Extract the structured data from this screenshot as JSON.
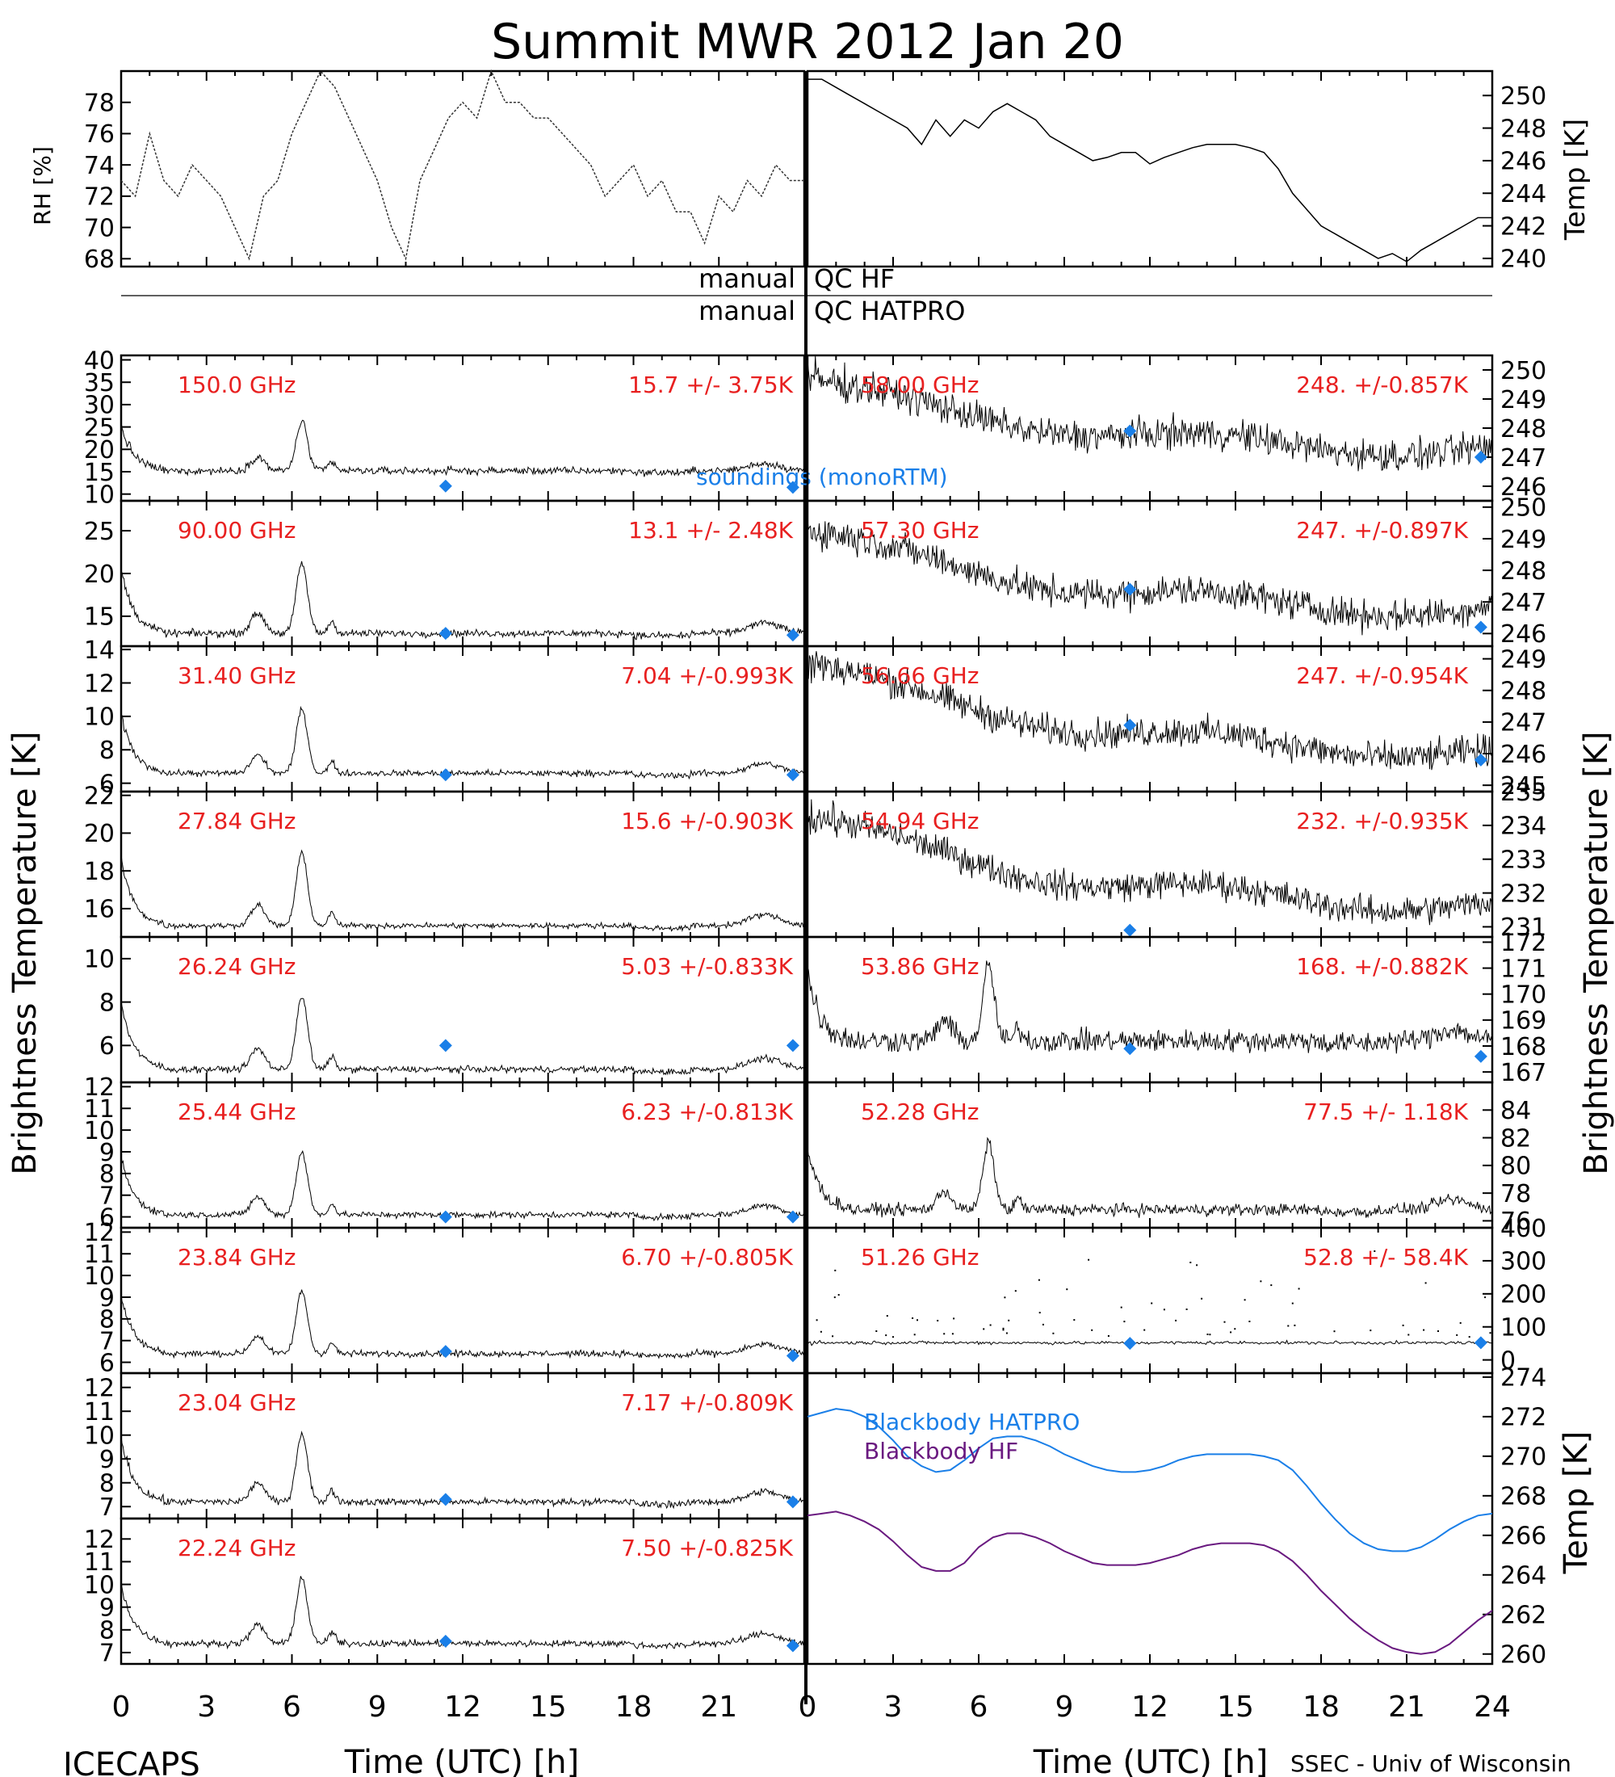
{
  "chart_data": {
    "type": "line",
    "title": "Summit MWR 2012 Jan 20",
    "footer_left": "ICECAPS",
    "footer_right": "SSEC - Univ of Wisconsin",
    "xlabel": "Time (UTC) [h]",
    "left_xticks": [
      0,
      3,
      6,
      9,
      12,
      15,
      18,
      21
    ],
    "right_xticks": [
      0,
      3,
      6,
      9,
      12,
      15,
      18,
      21,
      24
    ],
    "ylabel_left": "Brightness Temperature [K]",
    "ylabel_right": "Brightness Temperature [K]",
    "sonde_label": "soundings (monoRTM)",
    "qc": {
      "line1_left": "manual",
      "line1_right": "QC HF",
      "line2_left": "manual",
      "line2_right": "QC HATPRO"
    },
    "met": {
      "rh": {
        "ylabel": "RH [%]",
        "ylim": [
          67.5,
          80
        ],
        "yticks": [
          68,
          70,
          72,
          74,
          76,
          78
        ],
        "x": [
          0,
          0.5,
          1,
          1.5,
          2,
          2.5,
          3,
          3.5,
          4,
          4.5,
          5,
          5.5,
          6,
          6.5,
          7,
          7.5,
          8,
          8.5,
          9,
          9.5,
          10,
          10.5,
          11,
          11.5,
          12,
          12.5,
          13,
          13.5,
          14,
          14.5,
          15,
          15.5,
          16,
          16.5,
          17,
          17.5,
          18,
          18.5,
          19,
          19.5,
          20,
          20.5,
          21,
          21.5,
          22,
          22.5,
          23,
          23.5,
          24
        ],
        "y": [
          73,
          72,
          76,
          73,
          72,
          74,
          73,
          72,
          70,
          68,
          72,
          73,
          76,
          78,
          80,
          79,
          77,
          75,
          73,
          70,
          68,
          73,
          75,
          77,
          78,
          77,
          80,
          78,
          78,
          77,
          77,
          76,
          75,
          74,
          72,
          73,
          74,
          72,
          73,
          71,
          71,
          69,
          72,
          71,
          73,
          72,
          74,
          73,
          73
        ]
      },
      "temp": {
        "ylabel": "Temp [K]",
        "ylim": [
          239.5,
          251.5
        ],
        "yticks": [
          240,
          242,
          244,
          246,
          248,
          250
        ],
        "x": [
          0,
          0.5,
          1,
          1.5,
          2,
          2.5,
          3,
          3.5,
          4,
          4.5,
          5,
          5.5,
          6,
          6.5,
          7,
          7.5,
          8,
          8.5,
          9,
          9.5,
          10,
          10.5,
          11,
          11.5,
          12,
          12.5,
          13,
          13.5,
          14,
          14.5,
          15,
          15.5,
          16,
          16.5,
          17,
          17.5,
          18,
          18.5,
          19,
          19.5,
          20,
          20.5,
          21,
          21.5,
          22,
          22.5,
          23,
          23.5,
          24
        ],
        "y": [
          251,
          251,
          250.5,
          250,
          249.5,
          249,
          248.5,
          248,
          247,
          248.5,
          247.5,
          248.5,
          248,
          249,
          249.5,
          249,
          248.5,
          247.5,
          247,
          246.5,
          246,
          246.2,
          246.5,
          246.5,
          245.8,
          246.2,
          246.5,
          246.8,
          247,
          247,
          247,
          246.8,
          246.5,
          245.5,
          244,
          243,
          242,
          241.5,
          241,
          240.5,
          240,
          240.3,
          239.8,
          240.5,
          241,
          241.5,
          242,
          242.5,
          242.5
        ]
      }
    },
    "channels_left": [
      {
        "freq": "150.0 GHz",
        "stat": "15.7 +/-  3.75K",
        "ylim": [
          8.5,
          41
        ],
        "yticks": [
          10,
          15,
          20,
          25,
          30,
          35,
          40
        ],
        "base": 15.2,
        "amp": 1.15,
        "noise": 0.7,
        "sonde": [
          [
            11.4,
            11.8
          ],
          [
            23.6,
            11.5
          ]
        ]
      },
      {
        "freq": "90.00 GHz",
        "stat": "13.1 +/-  2.48K",
        "ylim": [
          11.5,
          28.5
        ],
        "yticks": [
          15,
          20,
          25
        ],
        "base": 13,
        "amp": 0.85,
        "noise": 0.35,
        "sonde": [
          [
            11.4,
            13
          ],
          [
            23.6,
            12.8
          ]
        ]
      },
      {
        "freq": "31.40 GHz",
        "stat": "7.04 +/-0.993K",
        "ylim": [
          5.5,
          14.2
        ],
        "yticks": [
          6,
          8,
          10,
          12,
          14
        ],
        "base": 6.6,
        "amp": 0.4,
        "noise": 0.15,
        "sonde": [
          [
            11.4,
            6.5
          ],
          [
            23.6,
            6.5
          ]
        ]
      },
      {
        "freq": "27.84 GHz",
        "stat": "15.6 +/-0.903K",
        "ylim": [
          14.5,
          22.2
        ],
        "yticks": [
          16,
          18,
          20,
          22
        ],
        "base": 15.1,
        "amp": 0.4,
        "noise": 0.12,
        "sonde": []
      },
      {
        "freq": "26.24 GHz",
        "stat": "5.03 +/-0.833K",
        "ylim": [
          4.3,
          11
        ],
        "yticks": [
          6,
          8,
          10
        ],
        "base": 4.9,
        "amp": 0.35,
        "noise": 0.12,
        "sonde": [
          [
            11.4,
            6
          ],
          [
            23.6,
            6
          ]
        ]
      },
      {
        "freq": "25.44 GHz",
        "stat": "6.23 +/-0.813K",
        "ylim": [
          5.5,
          12.2
        ],
        "yticks": [
          6,
          7,
          8,
          9,
          10,
          11,
          12
        ],
        "base": 6.1,
        "amp": 0.3,
        "noise": 0.12,
        "sonde": [
          [
            11.4,
            6
          ],
          [
            23.6,
            6
          ]
        ]
      },
      {
        "freq": "23.84 GHz",
        "stat": "6.70 +/-0.805K",
        "ylim": [
          5.5,
          12.2
        ],
        "yticks": [
          6,
          7,
          8,
          9,
          10,
          11,
          12
        ],
        "base": 6.4,
        "amp": 0.3,
        "noise": 0.12,
        "sonde": [
          [
            11.4,
            6.5
          ],
          [
            23.6,
            6.3
          ]
        ]
      },
      {
        "freq": "23.04 GHz",
        "stat": "7.17 +/-0.809K",
        "ylim": [
          6.5,
          12.6
        ],
        "yticks": [
          7,
          8,
          9,
          10,
          11,
          12
        ],
        "base": 7.2,
        "amp": 0.3,
        "noise": 0.12,
        "sonde": [
          [
            11.4,
            7.3
          ],
          [
            23.6,
            7.2
          ]
        ]
      },
      {
        "freq": "22.24 GHz",
        "stat": "7.50 +/-0.825K",
        "ylim": [
          6.5,
          12.9
        ],
        "yticks": [
          7,
          8,
          9,
          10,
          11,
          12
        ],
        "base": 7.4,
        "amp": 0.3,
        "noise": 0.12,
        "sonde": [
          [
            11.4,
            7.5
          ],
          [
            23.6,
            7.3
          ]
        ]
      }
    ],
    "channels_right": [
      {
        "freq": "58.00 GHz",
        "stat": "248. +/-0.857K",
        "ylim": [
          245.5,
          250.5
        ],
        "yticks": [
          246,
          247,
          248,
          249,
          250
        ],
        "start": 249.7,
        "end": 247.2,
        "noise": 0.45,
        "spike": false,
        "sonde": [
          [
            11.3,
            247.9
          ],
          [
            23.6,
            247.0
          ]
        ]
      },
      {
        "freq": "57.30 GHz",
        "stat": "247. +/-0.897K",
        "ylim": [
          245.6,
          250.2
        ],
        "yticks": [
          246,
          247,
          248,
          249,
          250
        ],
        "start": 249.3,
        "end": 246.7,
        "noise": 0.4,
        "spike": false,
        "sonde": [
          [
            11.3,
            247.4
          ],
          [
            23.6,
            246.2
          ]
        ]
      },
      {
        "freq": "56.66 GHz",
        "stat": "247. +/-0.954K",
        "ylim": [
          244.8,
          249.4
        ],
        "yticks": [
          245,
          246,
          247,
          248,
          249
        ],
        "start": 248.9,
        "end": 246.0,
        "noise": 0.4,
        "spike": false,
        "sonde": [
          [
            11.3,
            246.9
          ],
          [
            23.6,
            245.8
          ]
        ]
      },
      {
        "freq": "54.94 GHz",
        "stat": "232. +/-0.935K",
        "ylim": [
          230.7,
          235
        ],
        "yticks": [
          231,
          232,
          233,
          234,
          235
        ],
        "start": 234.3,
        "end": 231.6,
        "noise": 0.35,
        "spike": false,
        "sonde": [
          [
            11.3,
            230.9
          ]
        ]
      },
      {
        "freq": "53.86 GHz",
        "stat": "168. +/-0.882K",
        "ylim": [
          166.6,
          172.2
        ],
        "yticks": [
          167,
          168,
          169,
          170,
          171,
          172
        ],
        "start": 168.3,
        "end": 168.2,
        "noise": 0.35,
        "spike": true,
        "base": 168.2,
        "amp": 0.3,
        "sonde": [
          [
            11.3,
            167.9
          ],
          [
            23.6,
            167.6
          ]
        ]
      },
      {
        "freq": "52.28 GHz",
        "stat": "77.5 +/-  1.18K",
        "ylim": [
          75.5,
          86
        ],
        "yticks": [
          76,
          78,
          80,
          82,
          84
        ],
        "start": 76.8,
        "end": 76.8,
        "noise": 0.35,
        "spike": true,
        "base": 76.8,
        "amp": 0.5,
        "sonde": []
      },
      {
        "freq": "51.26 GHz",
        "stat": "52.8 +/-  58.4K",
        "ylim": [
          -40,
          400
        ],
        "yticks": [
          0,
          100,
          200,
          300,
          400
        ],
        "start": 52,
        "end": 52,
        "noise": 4,
        "spike": false,
        "scatter": true,
        "sonde": [
          [
            11.3,
            50
          ],
          [
            23.6,
            52
          ]
        ]
      }
    ],
    "blackbody": {
      "ylabel": "Temp [K]",
      "ylim": [
        259.5,
        274.2
      ],
      "yticks": [
        260,
        262,
        264,
        266,
        268,
        270,
        272,
        274
      ],
      "series": [
        {
          "name": "Blackbody HATPRO",
          "color": "#1a7fe8",
          "x": [
            0,
            0.5,
            1,
            1.5,
            2,
            2.5,
            3,
            3.5,
            4,
            4.5,
            5,
            5.5,
            6,
            6.5,
            7,
            7.5,
            8,
            8.5,
            9,
            9.5,
            10,
            10.5,
            11,
            11.5,
            12,
            12.5,
            13,
            13.5,
            14,
            14.5,
            15,
            15.5,
            16,
            16.5,
            17,
            17.5,
            18,
            18.5,
            19,
            19.5,
            20,
            20.5,
            21,
            21.5,
            22,
            22.5,
            23,
            23.5,
            24
          ],
          "y": [
            272,
            272.2,
            272.4,
            272.3,
            272,
            271.5,
            270.8,
            270,
            269.5,
            269.2,
            269.3,
            269.8,
            270.4,
            270.9,
            271,
            271,
            270.8,
            270.5,
            270.1,
            269.8,
            269.5,
            269.3,
            269.2,
            269.2,
            269.3,
            269.5,
            269.8,
            270,
            270.1,
            270.1,
            270.1,
            270.1,
            270,
            269.8,
            269.3,
            268.5,
            267.6,
            266.8,
            266.1,
            265.6,
            265.3,
            265.2,
            265.2,
            265.4,
            265.8,
            266.3,
            266.7,
            267,
            267.1
          ]
        },
        {
          "name": "Blackbody HF",
          "color": "#6a1a80",
          "x": [
            0,
            0.5,
            1,
            1.5,
            2,
            2.5,
            3,
            3.5,
            4,
            4.5,
            5,
            5.5,
            6,
            6.5,
            7,
            7.5,
            8,
            8.5,
            9,
            9.5,
            10,
            10.5,
            11,
            11.5,
            12,
            12.5,
            13,
            13.5,
            14,
            14.5,
            15,
            15.5,
            16,
            16.5,
            17,
            17.5,
            18,
            18.5,
            19,
            19.5,
            20,
            20.5,
            21,
            21.5,
            22,
            22.5,
            23,
            23.5,
            24
          ],
          "y": [
            267,
            267.1,
            267.2,
            267,
            266.7,
            266.3,
            265.7,
            265,
            264.4,
            264.2,
            264.2,
            264.6,
            265.4,
            265.9,
            266.1,
            266.1,
            265.9,
            265.6,
            265.2,
            264.9,
            264.6,
            264.5,
            264.5,
            264.5,
            264.6,
            264.8,
            265,
            265.3,
            265.5,
            265.6,
            265.6,
            265.6,
            265.5,
            265.2,
            264.7,
            264,
            263.2,
            262.5,
            261.8,
            261.2,
            260.7,
            260.3,
            260.1,
            260,
            260.1,
            260.5,
            261.1,
            261.7,
            262.2
          ]
        }
      ]
    }
  }
}
